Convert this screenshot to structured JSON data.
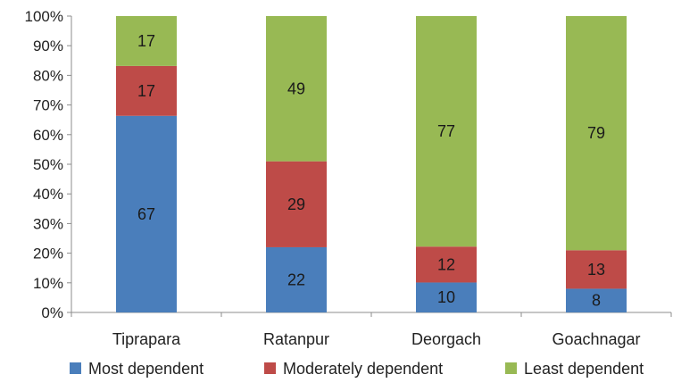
{
  "chart_data": {
    "type": "bar",
    "stacked": true,
    "percent_stacked": true,
    "categories": [
      "Tiprapara",
      "Ratanpur",
      "Deorgach",
      "Goachnagar"
    ],
    "series": [
      {
        "name": "Most dependent",
        "values": [
          67,
          22,
          10,
          8
        ],
        "color": "#4a7ebb"
      },
      {
        "name": "Moderately dependent",
        "values": [
          17,
          29,
          12,
          13
        ],
        "color": "#be4b48"
      },
      {
        "name": "Least dependent",
        "values": [
          17,
          49,
          77,
          79
        ],
        "color": "#98b954"
      }
    ],
    "y_ticks": [
      "0%",
      "10%",
      "20%",
      "30%",
      "40%",
      "50%",
      "60%",
      "70%",
      "80%",
      "90%",
      "100%"
    ],
    "ylim": [
      0,
      100
    ],
    "grid": false,
    "legend_position": "bottom"
  }
}
